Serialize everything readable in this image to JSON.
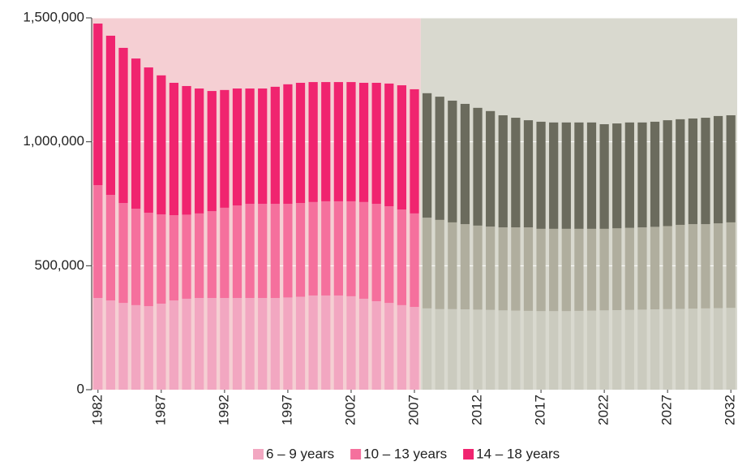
{
  "chart_data": {
    "type": "stacked-bar",
    "x": [
      1982,
      1983,
      1984,
      1985,
      1986,
      1987,
      1988,
      1989,
      1990,
      1991,
      1992,
      1993,
      1994,
      1995,
      1996,
      1997,
      1998,
      1999,
      2000,
      2001,
      2002,
      2003,
      2004,
      2005,
      2006,
      2007,
      2008,
      2009,
      2010,
      2011,
      2012,
      2013,
      2014,
      2015,
      2016,
      2017,
      2018,
      2019,
      2020,
      2021,
      2022,
      2023,
      2024,
      2025,
      2026,
      2027,
      2028,
      2029,
      2030,
      2031,
      2032
    ],
    "xlim": [
      1982,
      2032
    ],
    "xticks": [
      1982,
      1987,
      1992,
      1997,
      2002,
      2007,
      2012,
      2017,
      2022,
      2027,
      2032
    ],
    "ylim": [
      0,
      1500000
    ],
    "yticks": [
      0,
      {
        "value": 500000,
        "label": "500,000"
      },
      {
        "value": 1000000,
        "label": "1,000,000"
      },
      {
        "value": 1500000,
        "label": "1,500,000"
      }
    ],
    "grid": true,
    "legend": "bottom",
    "series": [
      {
        "name": "6 – 9 years",
        "color": "#f2a7c1",
        "values": [
          370000,
          360000,
          350000,
          341000,
          337000,
          347000,
          360000,
          367000,
          370000,
          370000,
          370000,
          370000,
          370000,
          370000,
          370000,
          372000,
          375000,
          380000,
          380000,
          380000,
          377000,
          367000,
          357000,
          350000,
          341000,
          334000,
          328000,
          325000,
          325000,
          324000,
          323000,
          322000,
          320000,
          319000,
          318000,
          317000,
          317000,
          317000,
          318000,
          319000,
          320000,
          321000,
          322000,
          323000,
          324000,
          325000,
          326000,
          327000,
          328000,
          329000,
          330000
        ]
      },
      {
        "name": "10 – 13 years",
        "color": "#f5709d",
        "values": [
          455000,
          426000,
          403000,
          389000,
          377000,
          360000,
          344000,
          339000,
          341000,
          350000,
          364000,
          373000,
          380000,
          380000,
          380000,
          378000,
          378000,
          377000,
          380000,
          380000,
          383000,
          390000,
          393000,
          390000,
          386000,
          377000,
          366000,
          360000,
          350000,
          344000,
          339000,
          336000,
          335000,
          336000,
          337000,
          332000,
          332000,
          332000,
          331000,
          330000,
          329000,
          330000,
          331000,
          332000,
          333000,
          335000,
          339000,
          341000,
          340000,
          342000,
          345000
        ]
      },
      {
        "name": "14 – 18 years",
        "color": "#f0246f",
        "values": [
          652000,
          642000,
          626000,
          606000,
          586000,
          561000,
          534000,
          519000,
          504000,
          485000,
          475000,
          472000,
          465000,
          465000,
          472000,
          482000,
          485000,
          484000,
          481000,
          481000,
          481000,
          481000,
          488000,
          495000,
          501000,
          501000,
          502000,
          497000,
          491000,
          485000,
          475000,
          466000,
          452000,
          442000,
          432000,
          432000,
          429000,
          429000,
          429000,
          429000,
          422000,
          423000,
          425000,
          423000,
          424000,
          427000,
          426000,
          426000,
          429000,
          433000,
          432000
        ]
      }
    ],
    "periods": [
      {
        "from": 1982,
        "to": 2007,
        "background": "#f5cfd3",
        "colors": [
          "#f2a7c1",
          "#f5709d",
          "#f0246f"
        ]
      },
      {
        "from": 2008,
        "to": 2032,
        "background": "#d9d9cf",
        "colors": [
          "#cbcbbf",
          "#b0ae9e",
          "#6b6b5d"
        ]
      }
    ]
  }
}
